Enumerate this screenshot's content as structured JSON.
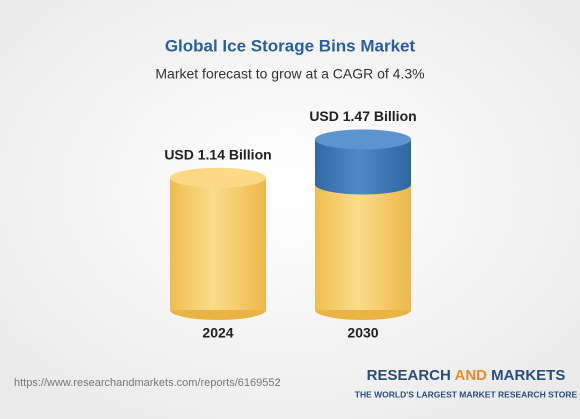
{
  "chart_data": {
    "type": "cylinder",
    "title": "Global Ice Storage Bins Market",
    "subtitle": "Market forecast to grow at a CAGR of 4.3%",
    "categories": [
      "2024",
      "2030"
    ],
    "values": [
      1.14,
      1.47
    ],
    "value_labels": [
      "USD 1.14 Billion",
      "USD 1.47 Billion"
    ],
    "color": "#f3c35c",
    "last_top_color": "#3f78b4"
  },
  "footer": {
    "url": "https://www.researchandmarkets.com/reports/6169552",
    "logo_research": "RESEARCH",
    "logo_and": "AND",
    "logo_markets": "MARKETS",
    "tagline": "THE WORLD'S LARGEST MARKET RESEARCH STORE"
  }
}
